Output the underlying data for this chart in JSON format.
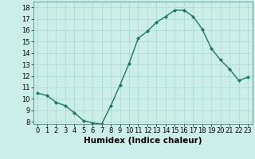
{
  "x": [
    0,
    1,
    2,
    3,
    4,
    5,
    6,
    7,
    8,
    9,
    10,
    11,
    12,
    13,
    14,
    15,
    16,
    17,
    18,
    19,
    20,
    21,
    22,
    23
  ],
  "y": [
    10.5,
    10.3,
    9.7,
    9.4,
    8.8,
    8.1,
    7.9,
    7.8,
    9.4,
    11.2,
    13.1,
    15.3,
    15.9,
    16.7,
    17.2,
    17.75,
    17.75,
    17.2,
    16.1,
    14.4,
    13.4,
    12.6,
    11.6,
    11.9
  ],
  "line_color": "#1a7a5e",
  "marker": "D",
  "markersize": 2.0,
  "linewidth": 1.0,
  "xlabel": "Humidex (Indice chaleur)",
  "xlim": [
    -0.5,
    23.5
  ],
  "ylim": [
    7.8,
    18.5
  ],
  "yticks": [
    8,
    9,
    10,
    11,
    12,
    13,
    14,
    15,
    16,
    17,
    18
  ],
  "xticks": [
    0,
    1,
    2,
    3,
    4,
    5,
    6,
    7,
    8,
    9,
    10,
    11,
    12,
    13,
    14,
    15,
    16,
    17,
    18,
    19,
    20,
    21,
    22,
    23
  ],
  "bg_color": "#cceee8",
  "grid_color": "#a8d8d0",
  "xlabel_fontsize": 7.5,
  "tick_fontsize": 6.0,
  "xlabel_fontweight": "bold"
}
